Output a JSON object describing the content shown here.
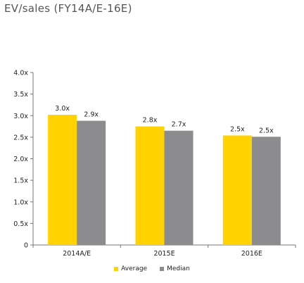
{
  "title": "EV/sales (FY14A/E-16E)",
  "colors": {
    "average": "#FFD200",
    "median": "#8C8B8E",
    "axis": "#777777"
  },
  "chart_data": {
    "type": "bar",
    "categories": [
      "2014A/E",
      "2015E",
      "2016E"
    ],
    "series": [
      {
        "name": "Average",
        "values": [
          3.02,
          2.75,
          2.54
        ],
        "labels": [
          "3.0x",
          "2.8x",
          "2.5x"
        ]
      },
      {
        "name": "Median",
        "values": [
          2.88,
          2.65,
          2.51
        ],
        "labels": [
          "2.9x",
          "2.7x",
          "2.5x"
        ]
      }
    ],
    "ylim": [
      0,
      4.0
    ],
    "yticks": [
      0,
      0.5,
      1.0,
      1.5,
      2.0,
      2.5,
      3.0,
      3.5,
      4.0
    ],
    "ytick_labels": [
      "0",
      "0.5x",
      "1.0x",
      "1.5x",
      "2.0x",
      "2.5x",
      "3.0x",
      "3.5x",
      "4.0x"
    ],
    "legend": "bottom",
    "grid": false
  }
}
